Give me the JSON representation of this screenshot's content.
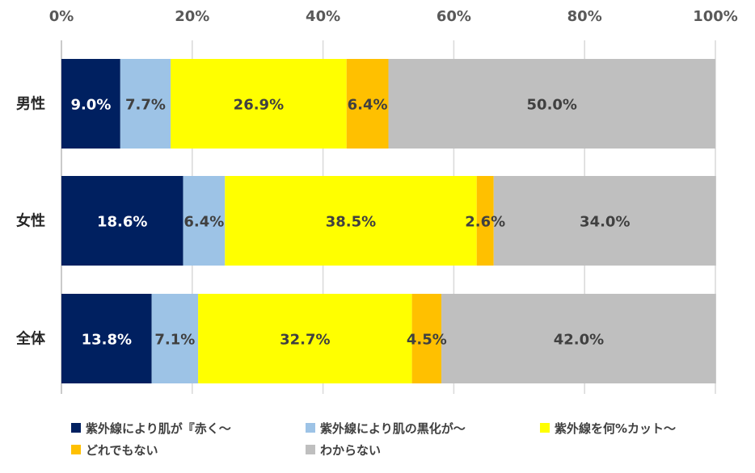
{
  "chart_data": {
    "type": "bar",
    "orientation": "horizontal",
    "stacked": "percent",
    "categories": [
      "男性",
      "女性",
      "全体"
    ],
    "series": [
      {
        "name": "紫外線により肌が『赤く～",
        "color": "#002060",
        "values": [
          9.0,
          18.6,
          13.8
        ],
        "labels": [
          "9.0%",
          "18.6%",
          "13.8%"
        ],
        "label_color": "#ffffff"
      },
      {
        "name": "紫外線により肌の黒化が～",
        "color": "#9dc3e6",
        "values": [
          7.7,
          6.4,
          7.1
        ],
        "labels": [
          "7.7%",
          "6.4%",
          "7.1%"
        ],
        "label_color": "#404040"
      },
      {
        "name": "紫外線を何%カット～",
        "color": "#ffff00",
        "values": [
          26.9,
          38.5,
          32.7
        ],
        "labels": [
          "26.9%",
          "38.5%",
          "32.7%"
        ],
        "label_color": "#404040"
      },
      {
        "name": "どれでもない",
        "color": "#ffc000",
        "values": [
          6.4,
          2.6,
          4.5
        ],
        "labels": [
          "6.4%",
          "2.6%",
          "4.5%"
        ],
        "label_color": "#404040"
      },
      {
        "name": "わからない",
        "color": "#bfbfbf",
        "values": [
          50.0,
          34.0,
          42.0
        ],
        "labels": [
          "50.0%",
          "34.0%",
          "42.0%"
        ],
        "label_color": "#404040"
      }
    ],
    "x_ticks": [
      "0%",
      "20%",
      "40%",
      "60%",
      "80%",
      "100%"
    ],
    "xlim": [
      0,
      100
    ],
    "grid": true,
    "axis_position": "top",
    "legend_position": "bottom"
  }
}
